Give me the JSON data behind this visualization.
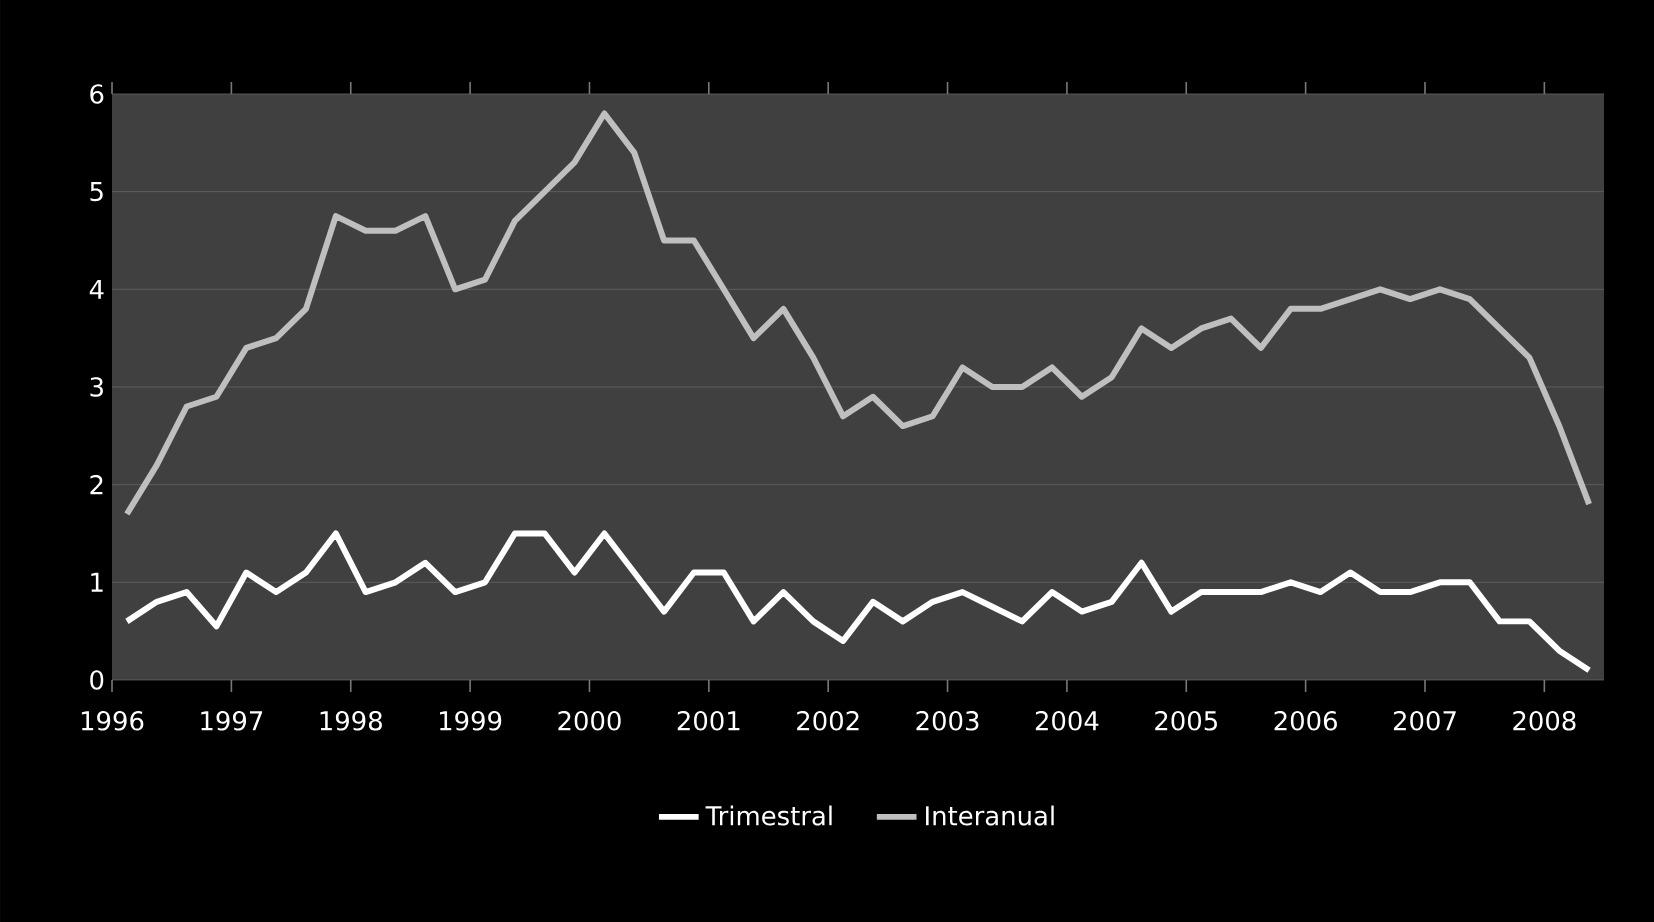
{
  "chart_data": {
    "type": "line",
    "xlim": [
      1996,
      2008.5
    ],
    "ylim": [
      0,
      6
    ],
    "xticks": [
      1996,
      1997,
      1998,
      1999,
      2000,
      2001,
      2002,
      2003,
      2004,
      2005,
      2006,
      2007,
      2008
    ],
    "yticks": [
      0,
      1,
      2,
      3,
      4,
      5,
      6
    ],
    "grid": "y",
    "legend": "bottom",
    "marker": "none",
    "line_style": "solid",
    "x": [
      1996.125,
      1996.375,
      1996.625,
      1996.875,
      1997.125,
      1997.375,
      1997.625,
      1997.875,
      1998.125,
      1998.375,
      1998.625,
      1998.875,
      1999.125,
      1999.375,
      1999.625,
      1999.875,
      2000.125,
      2000.375,
      2000.625,
      2000.875,
      2001.125,
      2001.375,
      2001.625,
      2001.875,
      2002.125,
      2002.375,
      2002.625,
      2002.875,
      2003.125,
      2003.375,
      2003.625,
      2003.875,
      2004.125,
      2004.375,
      2004.625,
      2004.875,
      2005.125,
      2005.375,
      2005.625,
      2005.875,
      2006.125,
      2006.375,
      2006.625,
      2006.875,
      2007.125,
      2007.375,
      2007.625,
      2007.875,
      2008.125,
      2008.375
    ],
    "series": [
      {
        "name": "Trimestral",
        "color": "#ffffff",
        "values": [
          0.6,
          0.8,
          0.9,
          0.55,
          1.1,
          0.9,
          1.1,
          1.5,
          0.9,
          1.0,
          1.2,
          0.9,
          1.0,
          1.5,
          1.5,
          1.1,
          1.5,
          1.1,
          0.7,
          1.1,
          1.1,
          0.6,
          0.9,
          0.6,
          0.4,
          0.8,
          0.6,
          0.8,
          0.9,
          0.75,
          0.6,
          0.9,
          0.7,
          0.8,
          1.2,
          0.7,
          0.9,
          0.9,
          0.9,
          1.0,
          0.9,
          1.1,
          0.9,
          0.9,
          1.0,
          1.0,
          0.6,
          0.6,
          0.3,
          0.1
        ]
      },
      {
        "name": "Interanual",
        "color": "#bfbfbf",
        "values": [
          1.7,
          2.2,
          2.8,
          2.9,
          3.4,
          3.5,
          3.8,
          4.75,
          4.6,
          4.6,
          4.75,
          4.0,
          4.1,
          4.7,
          5.0,
          5.3,
          5.8,
          5.4,
          4.5,
          4.5,
          4.0,
          3.5,
          3.8,
          3.3,
          2.7,
          2.9,
          2.6,
          2.7,
          3.2,
          3.0,
          3.0,
          3.2,
          2.9,
          3.1,
          3.6,
          3.4,
          3.6,
          3.7,
          3.4,
          3.8,
          3.8,
          3.9,
          4.0,
          3.9,
          4.0,
          3.9,
          3.6,
          3.3,
          2.6,
          1.8
        ]
      }
    ]
  }
}
